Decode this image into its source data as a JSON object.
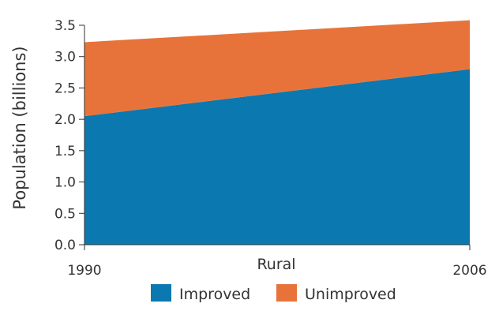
{
  "chart_data": {
    "type": "area",
    "stacked": true,
    "x": [
      1990,
      2006
    ],
    "x_tick_labels": [
      "1990",
      "2006"
    ],
    "category_label": "Rural",
    "ylabel": "Population (billions)",
    "ylim": [
      0,
      3.5
    ],
    "y_ticks": [
      0.0,
      0.5,
      1.0,
      1.5,
      2.0,
      2.5,
      3.0,
      3.5
    ],
    "y_tick_labels": [
      "0.0",
      "0.5",
      "1.0",
      "1.5",
      "2.0",
      "2.5",
      "3.0",
      "3.5"
    ],
    "series": [
      {
        "name": "Improved",
        "values": [
          2.05,
          2.8
        ],
        "color": "#0b78b0"
      },
      {
        "name": "Unimproved",
        "values": [
          1.18,
          0.78
        ],
        "color": "#e8733a"
      }
    ],
    "grid": false,
    "legend_position": "bottom-center"
  }
}
